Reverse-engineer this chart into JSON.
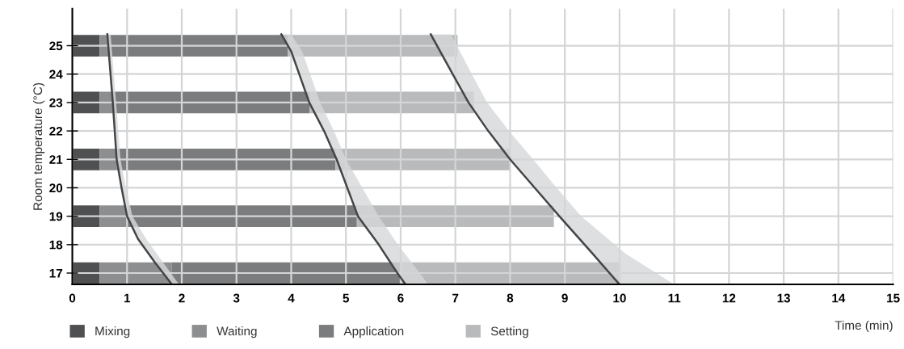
{
  "chart_data": {
    "type": "bar",
    "orientation": "horizontal",
    "stacked": true,
    "ylabel": "Room temperature (°C)",
    "xlabel": "Time (min)",
    "x": [
      17,
      19,
      21,
      23,
      25
    ],
    "xlim": [
      0,
      15
    ],
    "xticks": [
      0,
      1,
      2,
      3,
      4,
      5,
      6,
      7,
      8,
      9,
      10,
      11,
      12,
      13,
      14,
      15
    ],
    "ylim": [
      16.6,
      26.3
    ],
    "yticks": [
      17,
      18,
      19,
      20,
      21,
      22,
      23,
      24,
      25
    ],
    "grid": true,
    "legend": "bottom left",
    "series": [
      {
        "name": "Mixing",
        "color": "#4f5052",
        "values": [
          0.5,
          0.5,
          0.5,
          0.5,
          0.5
        ]
      },
      {
        "name": "Waiting",
        "color": "#8d8e90",
        "values": [
          1.32,
          0.5,
          0.31,
          0.24,
          0.14
        ]
      },
      {
        "name": "Application",
        "color": "#7b7c7e",
        "values": [
          4.2,
          4.2,
          4.0,
          3.6,
          3.3
        ]
      },
      {
        "name": "Setting",
        "color": "#b9babc",
        "values": [
          4.0,
          3.6,
          3.2,
          3.0,
          3.1
        ]
      },
      {
        "type": "line",
        "color": "#444547",
        "x": [
          25.4,
          23,
          21,
          20,
          19,
          18.2,
          17.4,
          16.6
        ],
        "values": [
          0.64,
          0.74,
          0.81,
          0.9,
          1.0,
          1.2,
          1.5,
          1.82
        ],
        "lower": [
          0.64,
          0.74,
          0.81,
          0.9,
          1.0,
          1.2,
          1.5,
          1.82
        ],
        "upper": [
          0.7,
          0.8,
          0.88,
          0.98,
          1.1,
          1.35,
          1.65,
          1.95
        ]
      },
      {
        "type": "line",
        "color": "#444547",
        "x": [
          25.4,
          24.8,
          23,
          22,
          21,
          19,
          18,
          17,
          16.6
        ],
        "values": [
          3.82,
          4.0,
          4.33,
          4.6,
          4.83,
          5.22,
          5.6,
          5.94,
          6.09
        ],
        "lower": [
          3.82,
          4.0,
          4.33,
          4.6,
          4.83,
          5.22,
          5.6,
          5.94,
          6.09
        ],
        "upper": [
          4.0,
          4.2,
          4.53,
          4.78,
          5.0,
          5.6,
          5.95,
          6.35,
          6.5
        ]
      },
      {
        "type": "line",
        "color": "#444547",
        "x": [
          25.4,
          24,
          23,
          22,
          21,
          20,
          19,
          17.7,
          16.6
        ],
        "values": [
          6.55,
          6.95,
          7.24,
          7.6,
          8.0,
          8.45,
          8.9,
          9.5,
          10.0
        ],
        "lower": [
          6.55,
          6.95,
          7.24,
          7.6,
          8.0,
          8.45,
          8.9,
          9.5,
          10.0
        ],
        "upper": [
          6.92,
          7.3,
          7.58,
          7.98,
          8.42,
          8.85,
          9.3,
          10.1,
          11.0
        ]
      }
    ]
  }
}
